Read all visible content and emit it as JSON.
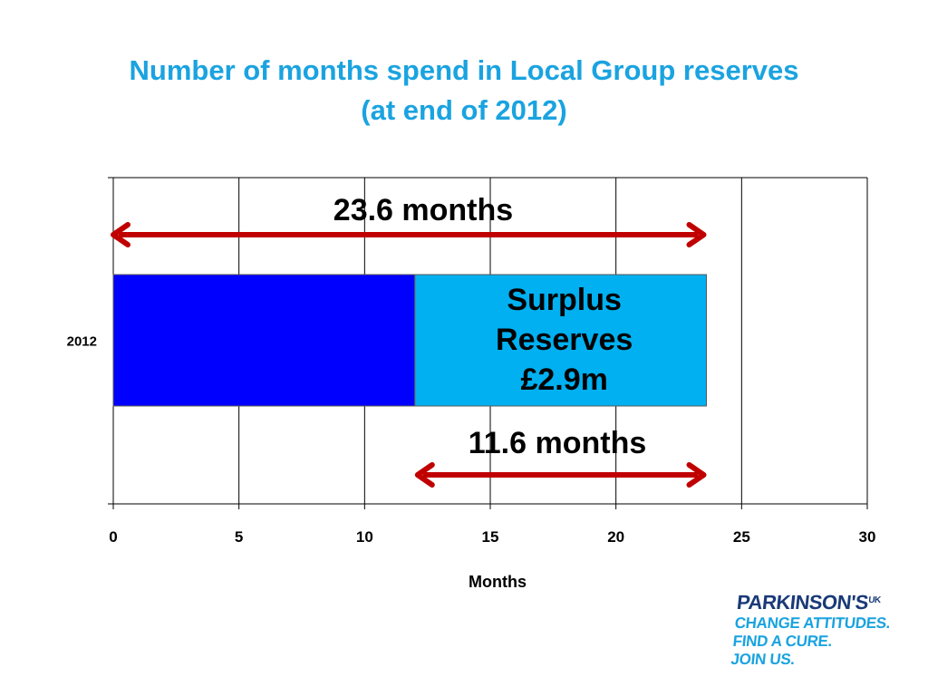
{
  "slide": {
    "title_line1": "Number of months spend in Local Group reserves",
    "title_line2": "(at end of 2012)"
  },
  "chart_data": {
    "type": "bar",
    "orientation": "horizontal",
    "stacked": true,
    "categories": [
      "2012"
    ],
    "series": [
      {
        "values": [
          12.0
        ],
        "color": "#0000ff"
      },
      {
        "values": [
          11.6
        ],
        "color": "#00b0f0"
      }
    ],
    "xlabel": "Months",
    "ylabel": "",
    "xlim": [
      0,
      30
    ],
    "xticks": [
      0,
      5,
      10,
      15,
      20,
      25,
      30
    ],
    "grid": "vertical",
    "bar_label": [
      "Surplus",
      "Reserves",
      "£2.9m"
    ],
    "annotations": [
      {
        "text": "23.6 months",
        "from": 0,
        "to": 23.6,
        "position": "above"
      },
      {
        "text": "11.6 months",
        "from": 12.0,
        "to": 23.6,
        "position": "below"
      }
    ],
    "arrow_color": "#c00000"
  },
  "logo": {
    "brand": "PARKINSON'S",
    "brand_suffix": "UK",
    "lines": [
      "CHANGE ATTITUDES.",
      "FIND A CURE.",
      "JOIN US."
    ]
  }
}
